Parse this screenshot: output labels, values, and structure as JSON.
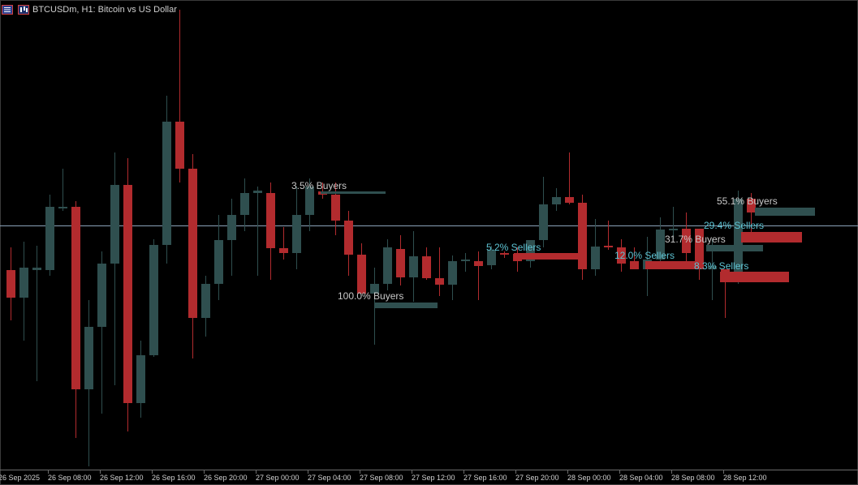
{
  "window": {
    "title": "BTCUSDm, H1:  Bitcoin vs US Dollar",
    "icons": [
      "menu-list-icon",
      "candlestick-chart-icon"
    ]
  },
  "colors": {
    "background": "#000000",
    "bull": "#2f4f4f",
    "bear": "#b22b2e",
    "buyers_text": "#c8c8c8",
    "sellers_text": "#5ec4d4",
    "price_line": "#8aa3b8",
    "axis": "#6b6b6b"
  },
  "x_axis": {
    "ticks": [
      "26 Sep 2025",
      "26 Sep 08:00",
      "26 Sep 12:00",
      "26 Sep 16:00",
      "26 Sep 20:00",
      "27 Sep 00:00",
      "27 Sep 04:00",
      "27 Sep 08:00",
      "27 Sep 12:00",
      "27 Sep 16:00",
      "27 Sep 20:00",
      "28 Sep 00:00",
      "28 Sep 04:00",
      "28 Sep 08:00",
      "28 Sep 12:00"
    ]
  },
  "annotations": [
    {
      "text": "3.5% Buyers",
      "kind": "buyers"
    },
    {
      "text": "100.0% Buyers",
      "kind": "buyers"
    },
    {
      "text": "5.2% Sellers",
      "kind": "sellers"
    },
    {
      "text": "12.0% Sellers",
      "kind": "sellers"
    },
    {
      "text": "55.1% Buyers",
      "kind": "buyers"
    },
    {
      "text": "29.4% Sellers",
      "kind": "sellers"
    },
    {
      "text": "31.7% Buyers",
      "kind": "buyers"
    },
    {
      "text": "8.3% Sellers",
      "kind": "sellers"
    }
  ]
}
